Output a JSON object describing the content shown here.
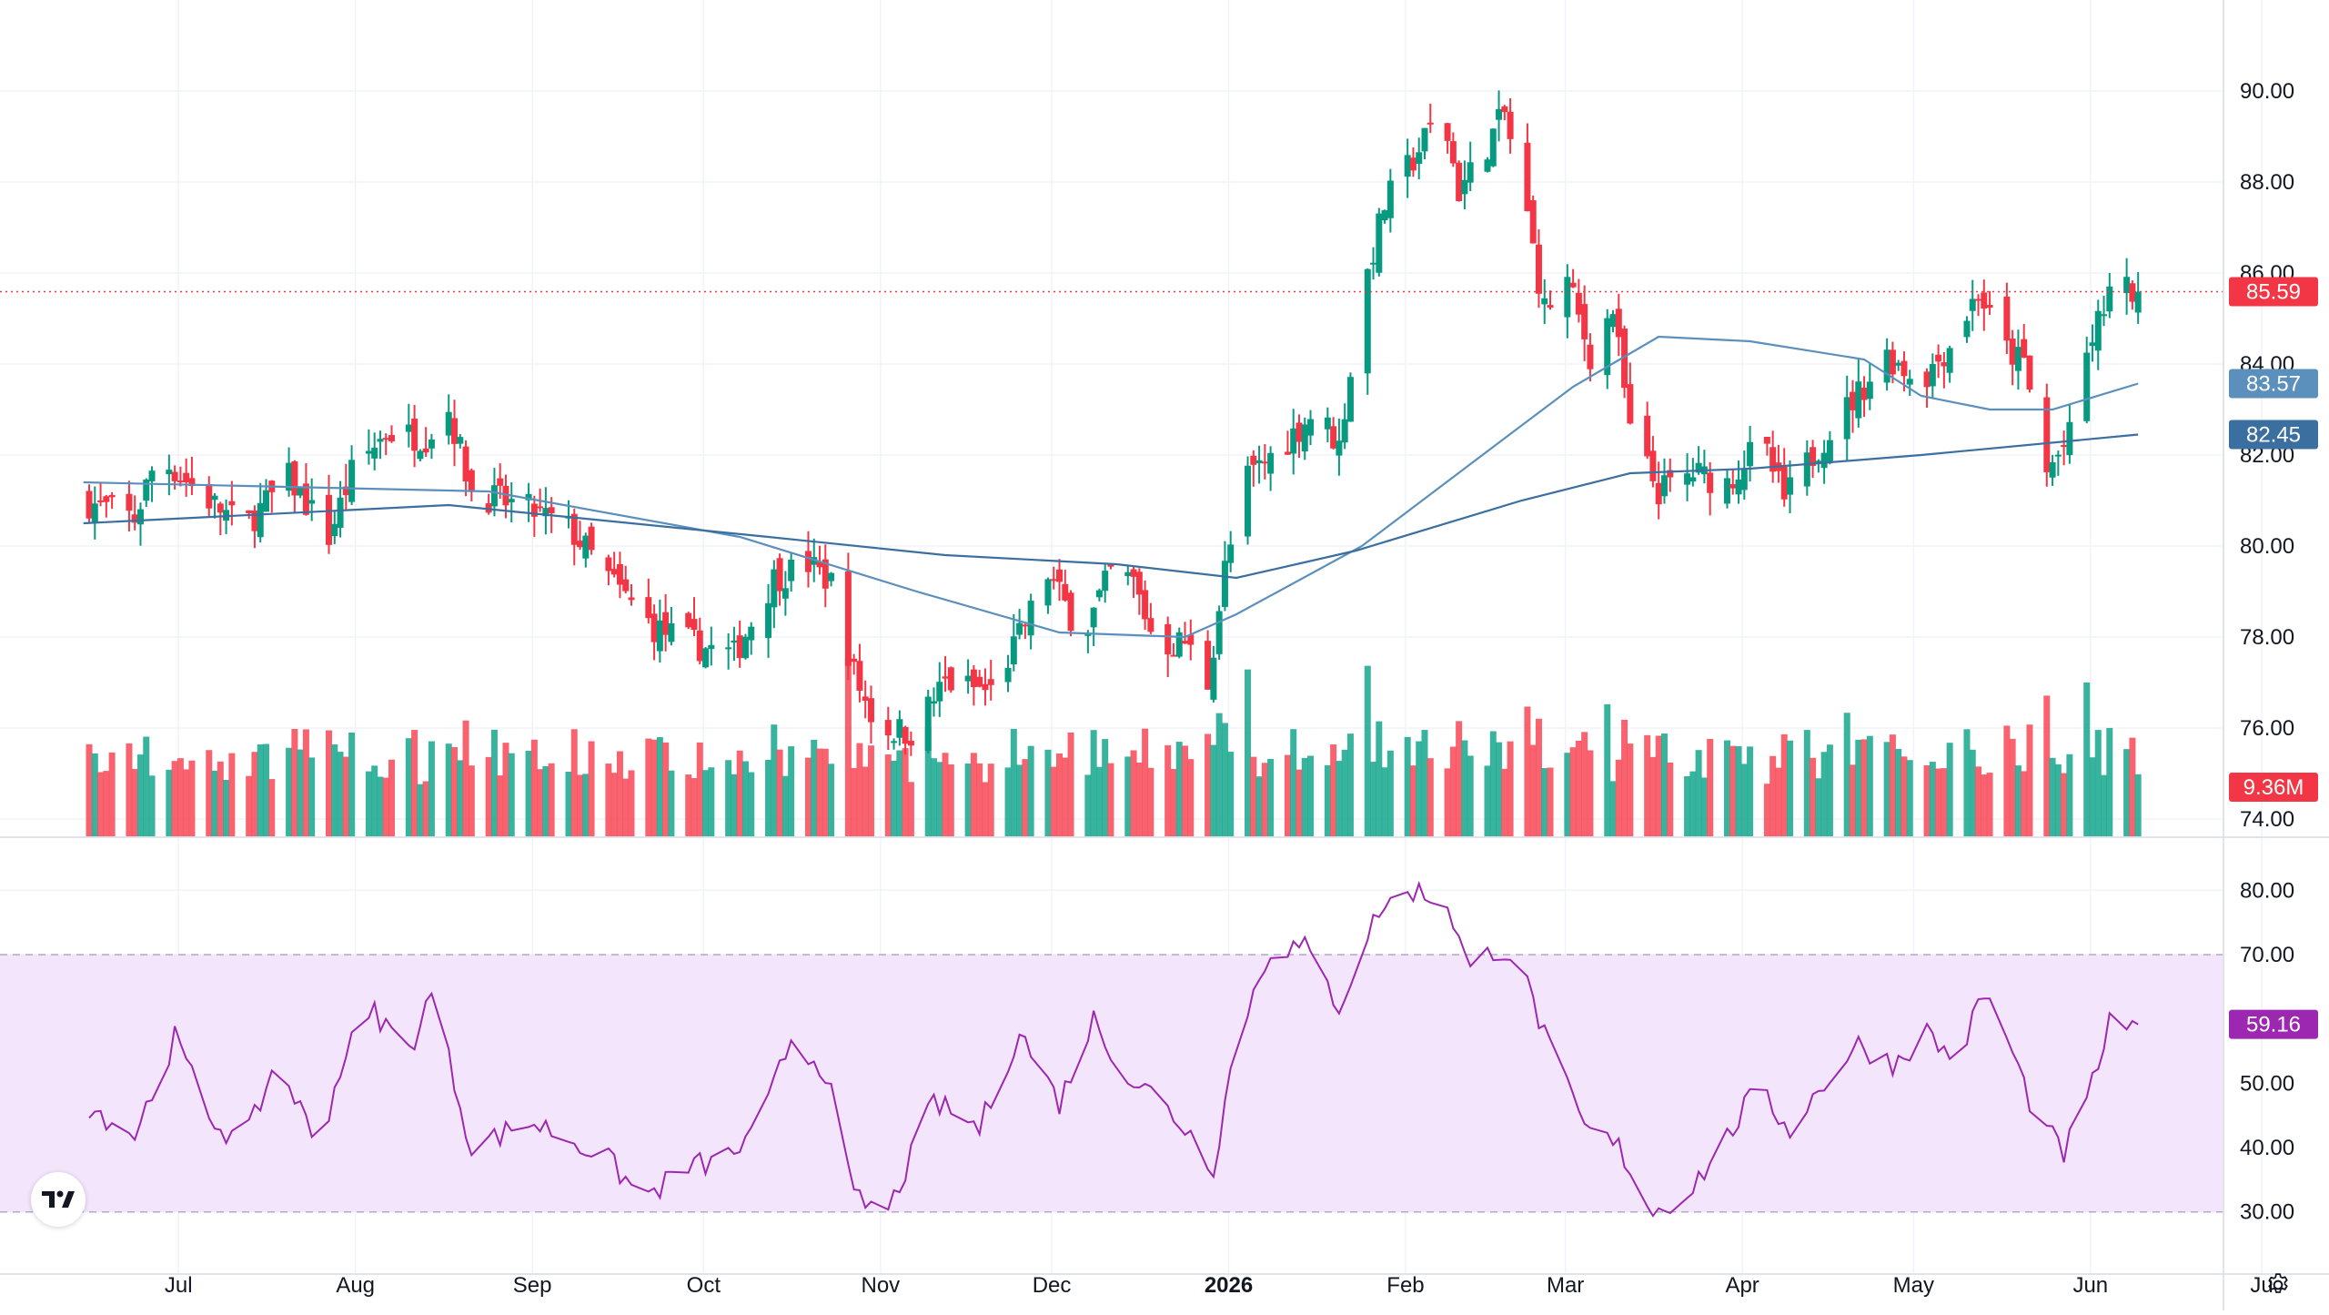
{
  "chart_data": [
    {
      "type": "candlestick",
      "pane": "price",
      "price_scale": {
        "ticks": [
          "90.00",
          "88.00",
          "86.00",
          "84.00",
          "82.00",
          "80.00",
          "78.00",
          "76.00",
          "74.00"
        ],
        "range": [
          73.6,
          91.4
        ]
      },
      "x_axis": {
        "labels": [
          "Jul",
          "Aug",
          "Sep",
          "Oct",
          "Nov",
          "Dec",
          "2026",
          "Feb",
          "Mar",
          "Apr",
          "May",
          "Jun",
          "Ju"
        ]
      },
      "price_keypoints": [
        {
          "date": "2025-06-22",
          "close": 81.0
        },
        {
          "date": "2025-07-01",
          "close": 80.6
        },
        {
          "date": "2025-07-05",
          "close": 82.0
        },
        {
          "date": "2025-07-12",
          "close": 81.2
        },
        {
          "date": "2025-07-20",
          "close": 80.4
        },
        {
          "date": "2025-07-28",
          "close": 81.5
        },
        {
          "date": "2025-08-04",
          "close": 80.2
        },
        {
          "date": "2025-08-08",
          "close": 81.6
        },
        {
          "date": "2025-08-14",
          "close": 82.5
        },
        {
          "date": "2025-08-21",
          "close": 82.4
        },
        {
          "date": "2025-08-25",
          "close": 83.0
        },
        {
          "date": "2025-08-29",
          "close": 81.2
        },
        {
          "date": "2025-09-08",
          "close": 80.8
        },
        {
          "date": "2025-09-15",
          "close": 80.4
        },
        {
          "date": "2025-09-24",
          "close": 79.0
        },
        {
          "date": "2025-09-30",
          "close": 78.2
        },
        {
          "date": "2025-10-08",
          "close": 77.8
        },
        {
          "date": "2025-10-14",
          "close": 77.6
        },
        {
          "date": "2025-10-21",
          "close": 79.3
        },
        {
          "date": "2025-10-27",
          "close": 79.6
        },
        {
          "date": "2025-10-31",
          "close": 79.2
        },
        {
          "date": "2025-11-04",
          "close": 77.2
        },
        {
          "date": "2025-11-08",
          "close": 76.0
        },
        {
          "date": "2025-11-14",
          "close": 75.9
        },
        {
          "date": "2025-11-20",
          "close": 77.0
        },
        {
          "date": "2025-11-28",
          "close": 76.8
        },
        {
          "date": "2025-12-03",
          "close": 78.0
        },
        {
          "date": "2025-12-08",
          "close": 79.4
        },
        {
          "date": "2025-12-14",
          "close": 78.0
        },
        {
          "date": "2025-12-19",
          "close": 79.4
        },
        {
          "date": "2025-12-23",
          "close": 79.2
        },
        {
          "date": "2025-12-27",
          "close": 77.8
        },
        {
          "date": "2026-01-01",
          "close": 77.9
        },
        {
          "date": "2026-01-05",
          "close": 77.0
        },
        {
          "date": "2026-01-08",
          "close": 79.5
        },
        {
          "date": "2026-01-12",
          "close": 81.5
        },
        {
          "date": "2026-01-18",
          "close": 82.2
        },
        {
          "date": "2026-01-24",
          "close": 83.0
        },
        {
          "date": "2026-01-28",
          "close": 82.2
        },
        {
          "date": "2026-02-01",
          "close": 85.5
        },
        {
          "date": "2026-02-05",
          "close": 87.5
        },
        {
          "date": "2026-02-10",
          "close": 88.5
        },
        {
          "date": "2026-02-15",
          "close": 89.6
        },
        {
          "date": "2026-02-18",
          "close": 87.8
        },
        {
          "date": "2026-02-22",
          "close": 88.6
        },
        {
          "date": "2026-02-26",
          "close": 89.5
        },
        {
          "date": "2026-03-02",
          "close": 87.2
        },
        {
          "date": "2026-03-05",
          "close": 85.2
        },
        {
          "date": "2026-03-09",
          "close": 85.8
        },
        {
          "date": "2026-03-13",
          "close": 84.2
        },
        {
          "date": "2026-03-17",
          "close": 85.2
        },
        {
          "date": "2026-03-20",
          "close": 82.5
        },
        {
          "date": "2026-03-25",
          "close": 81.2
        },
        {
          "date": "2026-03-31",
          "close": 81.6
        },
        {
          "date": "2026-04-06",
          "close": 81.4
        },
        {
          "date": "2026-04-12",
          "close": 82.3
        },
        {
          "date": "2026-04-16",
          "close": 81.0
        },
        {
          "date": "2026-04-22",
          "close": 82.2
        },
        {
          "date": "2026-04-28",
          "close": 83.2
        },
        {
          "date": "2026-05-04",
          "close": 84.2
        },
        {
          "date": "2026-05-10",
          "close": 83.6
        },
        {
          "date": "2026-05-16",
          "close": 84.6
        },
        {
          "date": "2026-05-20",
          "close": 85.6
        },
        {
          "date": "2026-05-24",
          "close": 84.4
        },
        {
          "date": "2026-05-28",
          "close": 84.0
        },
        {
          "date": "2026-06-01",
          "close": 81.6
        },
        {
          "date": "2026-06-05",
          "close": 82.4
        },
        {
          "date": "2026-06-08",
          "close": 84.2
        },
        {
          "date": "2026-06-12",
          "close": 85.6
        },
        {
          "date": "2026-06-17",
          "close": 85.59
        }
      ],
      "moving_averages": [
        {
          "label": "83.57",
          "color": "#5b8fbc",
          "value": 83.57,
          "points": [
            {
              "date": "2025-06-22",
              "value": 81.4
            },
            {
              "date": "2025-09-01",
              "value": 81.2
            },
            {
              "date": "2025-10-15",
              "value": 80.2
            },
            {
              "date": "2025-11-15",
              "value": 79.0
            },
            {
              "date": "2025-12-10",
              "value": 78.1
            },
            {
              "date": "2026-01-01",
              "value": 78.0
            },
            {
              "date": "2026-01-10",
              "value": 78.5
            },
            {
              "date": "2026-02-01",
              "value": 80.0
            },
            {
              "date": "2026-02-20",
              "value": 81.8
            },
            {
              "date": "2026-03-10",
              "value": 83.5
            },
            {
              "date": "2026-03-25",
              "value": 84.6
            },
            {
              "date": "2026-04-10",
              "value": 84.5
            },
            {
              "date": "2026-04-30",
              "value": 84.1
            },
            {
              "date": "2026-05-10",
              "value": 83.3
            },
            {
              "date": "2026-05-22",
              "value": 83.0
            },
            {
              "date": "2026-06-02",
              "value": 83.0
            },
            {
              "date": "2026-06-17",
              "value": 83.57
            }
          ]
        },
        {
          "label": "82.45",
          "color": "#3a6fa0",
          "value": 82.45,
          "points": [
            {
              "date": "2025-06-22",
              "value": 80.5
            },
            {
              "date": "2025-08-25",
              "value": 80.9
            },
            {
              "date": "2025-10-20",
              "value": 80.2
            },
            {
              "date": "2025-11-20",
              "value": 79.8
            },
            {
              "date": "2025-12-20",
              "value": 79.6
            },
            {
              "date": "2026-01-10",
              "value": 79.3
            },
            {
              "date": "2026-01-31",
              "value": 79.9
            },
            {
              "date": "2026-03-01",
              "value": 81.0
            },
            {
              "date": "2026-03-20",
              "value": 81.6
            },
            {
              "date": "2026-04-10",
              "value": 81.7
            },
            {
              "date": "2026-05-10",
              "value": 82.0
            },
            {
              "date": "2026-06-17",
              "value": 82.45
            }
          ]
        }
      ],
      "last_price": {
        "value": 85.59,
        "label": "85.59",
        "color": "#f23645"
      },
      "up_color": "#089981",
      "down_color": "#f23645"
    },
    {
      "type": "bar",
      "pane": "volume",
      "last_volume": {
        "label": "9.36M",
        "color": "#f23645"
      },
      "up_color": "#22ab94",
      "down_color": "#f7525f"
    },
    {
      "type": "line",
      "pane": "rsi",
      "y_ticks": [
        "80.00",
        "70.00",
        "60.00",
        "50.00",
        "40.00",
        "30.00"
      ],
      "range": [
        26,
        84
      ],
      "band": {
        "upper": 70,
        "lower": 30,
        "color": "#f3e5fc"
      },
      "line_color": "#9c27b0",
      "rsi_keypoints": [
        {
          "date": "2025-06-22",
          "value": 47
        },
        {
          "date": "2025-07-01",
          "value": 42
        },
        {
          "date": "2025-07-08",
          "value": 57
        },
        {
          "date": "2025-07-14",
          "value": 45
        },
        {
          "date": "2025-07-20",
          "value": 40
        },
        {
          "date": "2025-07-26",
          "value": 54
        },
        {
          "date": "2025-08-02",
          "value": 40
        },
        {
          "date": "2025-08-07",
          "value": 55
        },
        {
          "date": "2025-08-12",
          "value": 61
        },
        {
          "date": "2025-08-18",
          "value": 55
        },
        {
          "date": "2025-08-22",
          "value": 64
        },
        {
          "date": "2025-08-29",
          "value": 40
        },
        {
          "date": "2025-09-08",
          "value": 44
        },
        {
          "date": "2025-09-14",
          "value": 42
        },
        {
          "date": "2025-09-22",
          "value": 38
        },
        {
          "date": "2025-09-28",
          "value": 32
        },
        {
          "date": "2025-10-06",
          "value": 37
        },
        {
          "date": "2025-10-12",
          "value": 38
        },
        {
          "date": "2025-10-18",
          "value": 42
        },
        {
          "date": "2025-10-24",
          "value": 57
        },
        {
          "date": "2025-10-30",
          "value": 52
        },
        {
          "date": "2025-11-04",
          "value": 32
        },
        {
          "date": "2025-11-10",
          "value": 30
        },
        {
          "date": "2025-11-18",
          "value": 47
        },
        {
          "date": "2025-11-26",
          "value": 43
        },
        {
          "date": "2025-12-03",
          "value": 58
        },
        {
          "date": "2025-12-10",
          "value": 47
        },
        {
          "date": "2025-12-16",
          "value": 60
        },
        {
          "date": "2025-12-22",
          "value": 51
        },
        {
          "date": "2025-12-27",
          "value": 48
        },
        {
          "date": "2026-01-02",
          "value": 42
        },
        {
          "date": "2026-01-06",
          "value": 37
        },
        {
          "date": "2026-01-10",
          "value": 57
        },
        {
          "date": "2026-01-16",
          "value": 71
        },
        {
          "date": "2026-01-22",
          "value": 71
        },
        {
          "date": "2026-01-28",
          "value": 62
        },
        {
          "date": "2026-02-04",
          "value": 77
        },
        {
          "date": "2026-02-10",
          "value": 80
        },
        {
          "date": "2026-02-16",
          "value": 78
        },
        {
          "date": "2026-02-20",
          "value": 67
        },
        {
          "date": "2026-02-24",
          "value": 71
        },
        {
          "date": "2026-02-28",
          "value": 70
        },
        {
          "date": "2026-03-06",
          "value": 55
        },
        {
          "date": "2026-03-12",
          "value": 43
        },
        {
          "date": "2026-03-18",
          "value": 40
        },
        {
          "date": "2026-03-24",
          "value": 30
        },
        {
          "date": "2026-03-30",
          "value": 33
        },
        {
          "date": "2026-04-05",
          "value": 40
        },
        {
          "date": "2026-04-11",
          "value": 49
        },
        {
          "date": "2026-04-17",
          "value": 43
        },
        {
          "date": "2026-04-23",
          "value": 50
        },
        {
          "date": "2026-04-29",
          "value": 56
        },
        {
          "date": "2026-05-05",
          "value": 53
        },
        {
          "date": "2026-05-11",
          "value": 58
        },
        {
          "date": "2026-05-16",
          "value": 53
        },
        {
          "date": "2026-05-21",
          "value": 64
        },
        {
          "date": "2026-05-25",
          "value": 57
        },
        {
          "date": "2026-05-30",
          "value": 45
        },
        {
          "date": "2026-06-04",
          "value": 39
        },
        {
          "date": "2026-06-08",
          "value": 47
        },
        {
          "date": "2026-06-12",
          "value": 59
        },
        {
          "date": "2026-06-17",
          "value": 59.16
        }
      ],
      "last_value": {
        "value": 59.16,
        "label": "59.16",
        "color": "#9c27b0"
      }
    }
  ],
  "ui": {
    "logo_text": "TV",
    "logo_icon": "tradingview-logo-icon",
    "settings_icon": "gear-icon"
  }
}
